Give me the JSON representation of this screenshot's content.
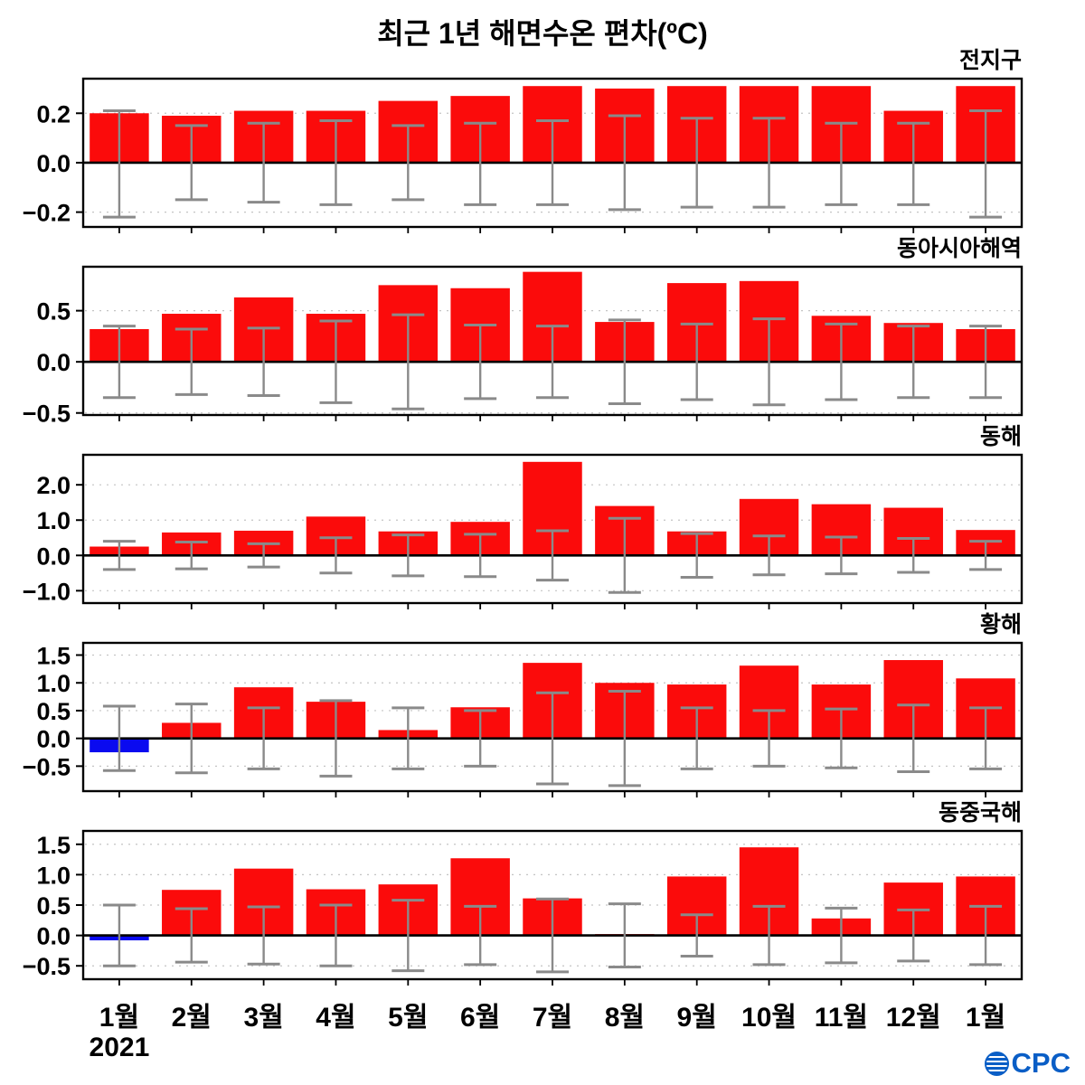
{
  "title": "최근 1년 해면수온 편차(ºC)",
  "year_label": "2021",
  "footer": {
    "logo": "OCPC"
  },
  "colors": {
    "positive_bar": "#fb0b0b",
    "negative_bar": "#0a0af0",
    "whisker": "#8a8a8a",
    "zero_line": "#000000",
    "grid": "#c4c4c4",
    "logo_blue": "#0a5ec6"
  },
  "chart_data": [
    {
      "type": "bar",
      "title": "전지구",
      "categories": [
        "1월",
        "2월",
        "3월",
        "4월",
        "5월",
        "6월",
        "7월",
        "8월",
        "9월",
        "10월",
        "11월",
        "12월",
        "1월"
      ],
      "values": [
        0.2,
        0.19,
        0.21,
        0.21,
        0.25,
        0.27,
        0.31,
        0.3,
        0.31,
        0.31,
        0.31,
        0.21,
        0.31
      ],
      "whisker_top": [
        0.21,
        0.15,
        0.16,
        0.17,
        0.15,
        0.16,
        0.17,
        0.19,
        0.18,
        0.18,
        0.16,
        0.16,
        0.21
      ],
      "whisker_bottom": [
        -0.22,
        -0.15,
        -0.16,
        -0.17,
        -0.15,
        -0.17,
        -0.17,
        -0.19,
        -0.18,
        -0.18,
        -0.17,
        -0.17,
        -0.22
      ],
      "yticks": [
        0.2,
        0.0,
        -0.2
      ],
      "ylim": [
        -0.26,
        0.34
      ]
    },
    {
      "type": "bar",
      "title": "동아시아해역",
      "categories": [
        "1월",
        "2월",
        "3월",
        "4월",
        "5월",
        "6월",
        "7월",
        "8월",
        "9월",
        "10월",
        "11월",
        "12월",
        "1월"
      ],
      "values": [
        0.32,
        0.47,
        0.63,
        0.47,
        0.75,
        0.72,
        0.88,
        0.39,
        0.77,
        0.79,
        0.45,
        0.38,
        0.32
      ],
      "whisker_top": [
        0.35,
        0.32,
        0.33,
        0.4,
        0.46,
        0.36,
        0.35,
        0.41,
        0.37,
        0.42,
        0.37,
        0.35,
        0.35
      ],
      "whisker_bottom": [
        -0.35,
        -0.32,
        -0.33,
        -0.4,
        -0.46,
        -0.36,
        -0.35,
        -0.41,
        -0.37,
        -0.42,
        -0.37,
        -0.35,
        -0.35
      ],
      "yticks": [
        0.5,
        0.0,
        -0.5
      ],
      "ylim": [
        -0.52,
        0.93
      ]
    },
    {
      "type": "bar",
      "title": "동해",
      "categories": [
        "1월",
        "2월",
        "3월",
        "4월",
        "5월",
        "6월",
        "7월",
        "8월",
        "9월",
        "10월",
        "11월",
        "12월",
        "1월"
      ],
      "values": [
        0.25,
        0.65,
        0.7,
        1.1,
        0.68,
        0.95,
        2.65,
        1.4,
        0.68,
        1.6,
        1.45,
        1.35,
        0.72
      ],
      "whisker_top": [
        0.4,
        0.38,
        0.33,
        0.5,
        0.58,
        0.6,
        0.7,
        1.05,
        0.62,
        0.55,
        0.52,
        0.48,
        0.4
      ],
      "whisker_bottom": [
        -0.4,
        -0.38,
        -0.33,
        -0.5,
        -0.58,
        -0.6,
        -0.7,
        -1.05,
        -0.62,
        -0.55,
        -0.52,
        -0.48,
        -0.4
      ],
      "yticks": [
        2.0,
        1.0,
        0.0,
        -1.0
      ],
      "ylim": [
        -1.35,
        2.85
      ]
    },
    {
      "type": "bar",
      "title": "황해",
      "categories": [
        "1월",
        "2월",
        "3월",
        "4월",
        "5월",
        "6월",
        "7월",
        "8월",
        "9월",
        "10월",
        "11월",
        "12월",
        "1월"
      ],
      "values": [
        -0.25,
        0.28,
        0.92,
        0.66,
        0.15,
        0.56,
        1.36,
        1.0,
        0.97,
        1.31,
        0.97,
        1.41,
        1.08
      ],
      "whisker_top": [
        0.58,
        0.62,
        0.55,
        0.68,
        0.55,
        0.5,
        0.82,
        0.85,
        0.55,
        0.5,
        0.53,
        0.6,
        0.55
      ],
      "whisker_bottom": [
        -0.58,
        -0.62,
        -0.55,
        -0.68,
        -0.55,
        -0.5,
        -0.82,
        -0.85,
        -0.55,
        -0.5,
        -0.53,
        -0.6,
        -0.55
      ],
      "yticks": [
        1.5,
        1.0,
        0.5,
        0.0,
        -0.5
      ],
      "ylim": [
        -0.95,
        1.72
      ]
    },
    {
      "type": "bar",
      "title": "동중국해",
      "categories": [
        "1월",
        "2월",
        "3월",
        "4월",
        "5월",
        "6월",
        "7월",
        "8월",
        "9월",
        "10월",
        "11월",
        "12월",
        "1월"
      ],
      "values": [
        -0.08,
        0.75,
        1.1,
        0.76,
        0.84,
        1.27,
        0.61,
        0.0,
        0.97,
        1.45,
        0.28,
        0.87,
        0.97
      ],
      "whisker_top": [
        0.5,
        0.44,
        0.47,
        0.5,
        0.58,
        0.48,
        0.6,
        0.52,
        0.34,
        0.48,
        0.45,
        0.42,
        0.48
      ],
      "whisker_bottom": [
        -0.5,
        -0.44,
        -0.47,
        -0.5,
        -0.58,
        -0.48,
        -0.6,
        -0.52,
        -0.34,
        -0.48,
        -0.45,
        -0.42,
        -0.48
      ],
      "yticks": [
        1.5,
        1.0,
        0.5,
        0.0,
        -0.5
      ],
      "ylim": [
        -0.72,
        1.72
      ]
    }
  ]
}
